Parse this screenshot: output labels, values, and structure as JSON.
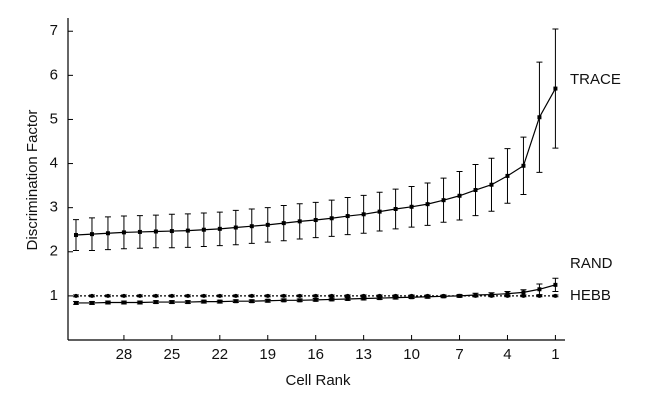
{
  "chart_data": {
    "type": "line",
    "xlabel": "Cell Rank",
    "ylabel": "Discrimination Factor",
    "x": [
      31,
      30,
      29,
      28,
      27,
      26,
      25,
      24,
      23,
      22,
      21,
      20,
      19,
      18,
      17,
      16,
      15,
      14,
      13,
      12,
      11,
      10,
      9,
      8,
      7,
      6,
      5,
      4,
      3,
      2,
      1
    ],
    "xlim": [
      31.5,
      0.4
    ],
    "xticks": [
      28,
      25,
      22,
      19,
      16,
      13,
      10,
      7,
      4,
      1
    ],
    "ylim": [
      0,
      7.3
    ],
    "yticks": [
      1,
      2,
      3,
      4,
      5,
      6,
      7
    ],
    "series": [
      {
        "name": "TRACE",
        "color": "#000000",
        "marker": "square",
        "values": [
          2.38,
          2.4,
          2.42,
          2.44,
          2.45,
          2.46,
          2.47,
          2.48,
          2.5,
          2.52,
          2.55,
          2.58,
          2.61,
          2.65,
          2.69,
          2.72,
          2.76,
          2.81,
          2.85,
          2.91,
          2.97,
          3.02,
          3.08,
          3.17,
          3.27,
          3.4,
          3.52,
          3.72,
          3.95,
          5.05,
          5.7
        ],
        "errors": [
          0.35,
          0.37,
          0.37,
          0.37,
          0.37,
          0.37,
          0.38,
          0.38,
          0.38,
          0.38,
          0.39,
          0.39,
          0.39,
          0.4,
          0.4,
          0.4,
          0.41,
          0.42,
          0.43,
          0.44,
          0.45,
          0.46,
          0.48,
          0.5,
          0.55,
          0.58,
          0.6,
          0.62,
          0.65,
          1.25,
          1.35
        ]
      },
      {
        "name": "RAND",
        "color": "#000000",
        "marker": "square",
        "values": [
          0.84,
          0.84,
          0.85,
          0.85,
          0.85,
          0.86,
          0.86,
          0.86,
          0.87,
          0.87,
          0.88,
          0.88,
          0.89,
          0.9,
          0.9,
          0.91,
          0.92,
          0.93,
          0.94,
          0.95,
          0.96,
          0.97,
          0.98,
          0.99,
          1.0,
          1.02,
          1.03,
          1.05,
          1.08,
          1.15,
          1.25
        ],
        "errors": [
          0.03,
          0.03,
          0.03,
          0.03,
          0.03,
          0.03,
          0.03,
          0.03,
          0.03,
          0.03,
          0.03,
          0.03,
          0.03,
          0.03,
          0.03,
          0.03,
          0.03,
          0.03,
          0.03,
          0.03,
          0.03,
          0.03,
          0.03,
          0.03,
          0.03,
          0.04,
          0.04,
          0.05,
          0.06,
          0.12,
          0.15
        ]
      },
      {
        "name": "HEBB",
        "color": "#000000",
        "marker": "circle",
        "dashed": true,
        "values": [
          1,
          1,
          1,
          1,
          1,
          1,
          1,
          1,
          1,
          1,
          1,
          1,
          1,
          1,
          1,
          1,
          1,
          1,
          1,
          1,
          1,
          1,
          1,
          1,
          1,
          1,
          1,
          1,
          1,
          1,
          1
        ],
        "errors": [
          0.02,
          0.02,
          0.02,
          0.02,
          0.02,
          0.02,
          0.02,
          0.02,
          0.02,
          0.02,
          0.02,
          0.02,
          0.02,
          0.02,
          0.02,
          0.02,
          0.02,
          0.02,
          0.02,
          0.02,
          0.02,
          0.02,
          0.02,
          0.02,
          0.02,
          0.02,
          0.02,
          0.02,
          0.02,
          0.02,
          0.02
        ]
      }
    ]
  }
}
